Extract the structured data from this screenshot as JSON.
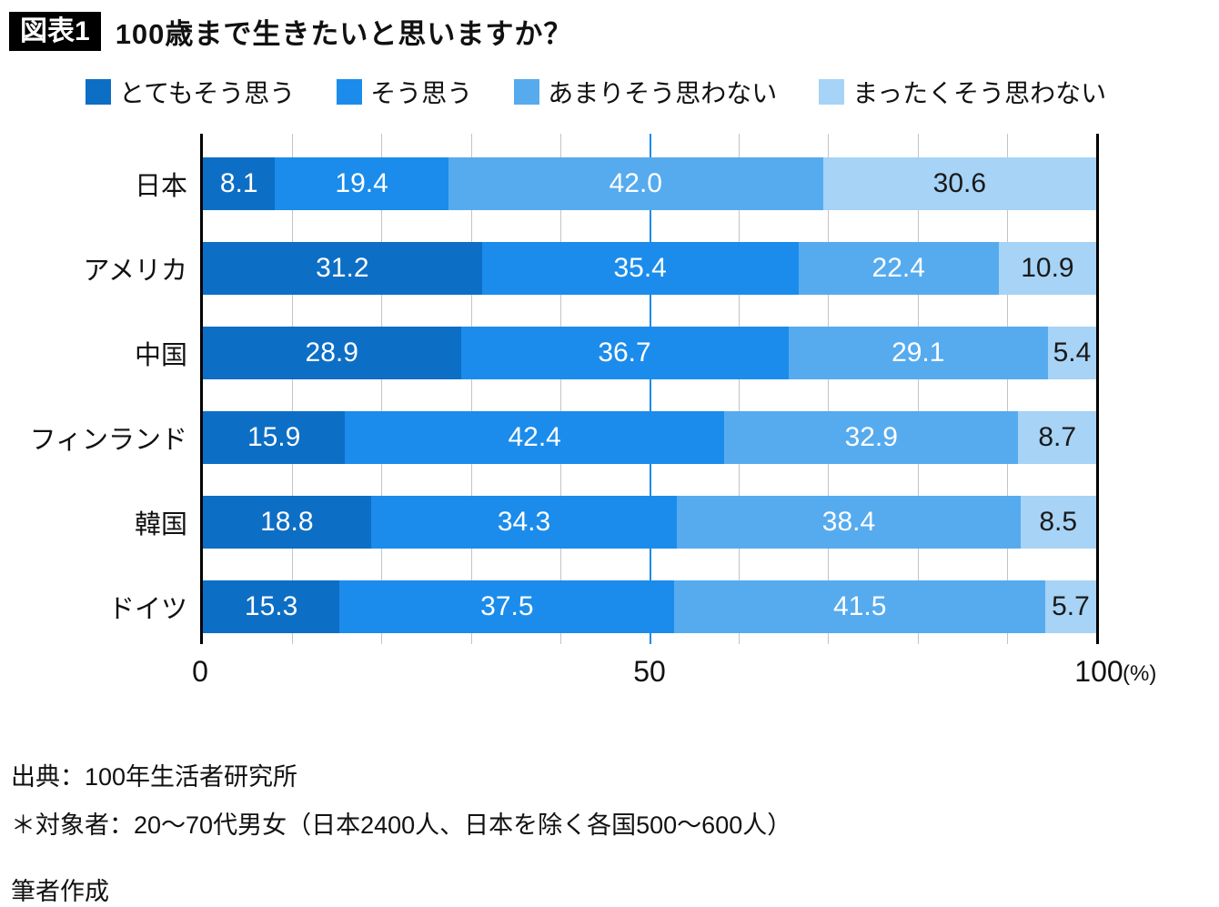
{
  "header": {
    "badge": "図表1",
    "title": "100歳まで生きたいと思いますか？"
  },
  "chart_data": {
    "type": "bar",
    "subtype": "horizontal-stacked",
    "title": "100歳まで生きたいと思いますか？",
    "categories": [
      "日本",
      "アメリカ",
      "中国",
      "フィンランド",
      "韓国",
      "ドイツ"
    ],
    "series": [
      {
        "name": "とてもそう思う",
        "color": "#0d6ec5",
        "text_color": "#ffffff",
        "values": [
          8.1,
          31.2,
          28.9,
          15.9,
          18.8,
          15.3
        ]
      },
      {
        "name": "そう思う",
        "color": "#1b8ceb",
        "text_color": "#ffffff",
        "values": [
          19.4,
          35.4,
          36.7,
          42.4,
          34.3,
          37.5
        ]
      },
      {
        "name": "あまりそう思わない",
        "color": "#56abef",
        "text_color": "#ffffff",
        "values": [
          42.0,
          22.4,
          29.1,
          32.9,
          38.4,
          41.5
        ]
      },
      {
        "name": "まったくそう思わない",
        "color": "#a6d3f6",
        "text_color": "#1a1a1a",
        "values": [
          30.6,
          10.9,
          5.4,
          8.7,
          8.5,
          5.7
        ]
      }
    ],
    "xlim": [
      0,
      100
    ],
    "grid": {
      "interval": 10,
      "color": "#c4c4c4",
      "highlight_value": 50,
      "highlight_color": "#1b8ceb"
    },
    "axis": {
      "ticks": [
        {
          "value": 0,
          "label": "0"
        },
        {
          "value": 50,
          "label": "50"
        },
        {
          "value": 100,
          "label": "100"
        }
      ],
      "unit": "(%)"
    },
    "legend_position": "top",
    "value_label_decimals": 1
  },
  "footer": {
    "source": "出典：100年生活者研究所",
    "note": "＊対象者：20～70代男女（日本2400人、日本を除く各国500～600人）",
    "credit": "筆者作成"
  }
}
